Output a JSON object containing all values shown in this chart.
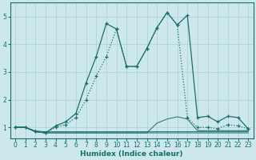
{
  "xlabel": "Humidex (Indice chaleur)",
  "xlim": [
    -0.5,
    23.5
  ],
  "ylim": [
    0.6,
    5.5
  ],
  "yticks": [
    1,
    2,
    3,
    4,
    5
  ],
  "xticks": [
    0,
    1,
    2,
    3,
    4,
    5,
    6,
    7,
    8,
    9,
    10,
    11,
    12,
    13,
    14,
    15,
    16,
    17,
    18,
    19,
    20,
    21,
    22,
    23
  ],
  "bg_color": "#cce8ec",
  "line_color": "#1a6e6a",
  "grid_color": "#aacdd4",
  "curve_solid": {
    "x": [
      0,
      1,
      2,
      3,
      4,
      5,
      6,
      7,
      8,
      9,
      10,
      11,
      12,
      13,
      14,
      15,
      16,
      17,
      18,
      19,
      20,
      21,
      22,
      23
    ],
    "y": [
      1.0,
      1.0,
      0.85,
      0.8,
      1.05,
      1.2,
      1.5,
      2.6,
      3.55,
      4.75,
      4.55,
      3.2,
      3.2,
      3.85,
      4.6,
      5.15,
      4.7,
      5.05,
      1.35,
      1.4,
      1.2,
      1.4,
      1.35,
      0.95
    ]
  },
  "curve_dotted": {
    "x": [
      0,
      1,
      2,
      3,
      4,
      5,
      6,
      7,
      8,
      9,
      10,
      11,
      12,
      13,
      14,
      15,
      16,
      17,
      18,
      19,
      20,
      21,
      22,
      23
    ],
    "y": [
      1.0,
      1.0,
      0.85,
      0.8,
      1.0,
      1.1,
      1.35,
      2.0,
      2.85,
      3.55,
      4.55,
      3.2,
      3.2,
      3.85,
      4.6,
      5.15,
      4.7,
      1.35,
      1.0,
      1.0,
      0.95,
      1.1,
      1.05,
      0.95
    ]
  },
  "flat1": {
    "x": [
      0,
      1,
      2,
      3,
      4,
      5,
      6,
      7,
      8,
      9,
      10,
      11,
      12,
      13,
      14,
      15,
      16,
      17,
      18,
      19,
      20,
      21,
      22,
      23
    ],
    "y": [
      1.0,
      1.0,
      0.87,
      0.84,
      0.84,
      0.84,
      0.84,
      0.84,
      0.84,
      0.84,
      0.84,
      0.84,
      0.84,
      0.84,
      0.84,
      0.84,
      0.84,
      0.84,
      0.84,
      0.84,
      0.84,
      0.84,
      0.84,
      0.84
    ]
  },
  "flat2": {
    "x": [
      0,
      1,
      2,
      3,
      4,
      5,
      6,
      7,
      8,
      9,
      10,
      11,
      12,
      13,
      14,
      15,
      16,
      17,
      18,
      19,
      20,
      21,
      22,
      23
    ],
    "y": [
      1.0,
      1.0,
      0.84,
      0.8,
      0.8,
      0.8,
      0.8,
      0.8,
      0.8,
      0.8,
      0.8,
      0.8,
      0.8,
      0.8,
      0.8,
      0.8,
      0.8,
      0.8,
      0.8,
      0.8,
      0.8,
      0.8,
      0.8,
      0.8
    ]
  },
  "flat3": {
    "x": [
      0,
      1,
      2,
      3,
      4,
      5,
      6,
      7,
      8,
      9,
      10,
      11,
      12,
      13,
      14,
      15,
      16,
      17,
      18,
      19,
      20,
      21,
      22,
      23
    ],
    "y": [
      1.0,
      1.0,
      0.84,
      0.8,
      0.8,
      0.8,
      0.8,
      0.8,
      0.8,
      0.8,
      0.8,
      0.8,
      0.8,
      0.8,
      1.15,
      1.3,
      1.38,
      1.3,
      0.88,
      0.88,
      0.88,
      0.88,
      0.88,
      0.88
    ]
  }
}
